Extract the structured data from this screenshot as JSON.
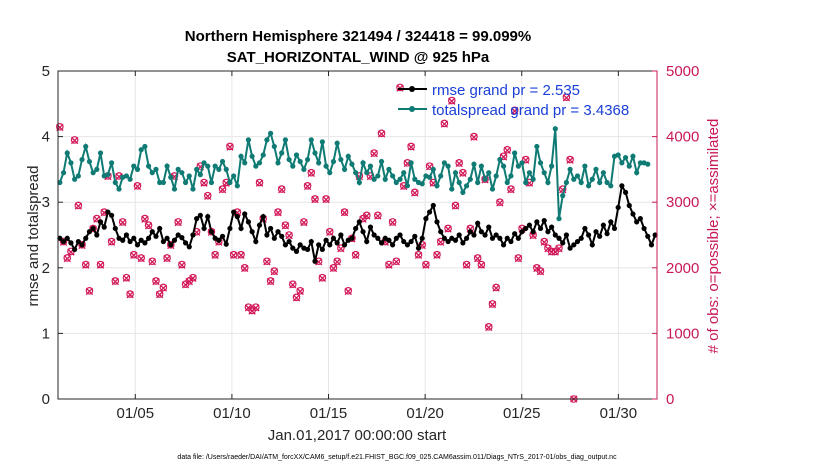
{
  "chart_data": {
    "type": "line",
    "title_line1": "Northern Hemisphere 321494 / 324418 = 99.099%",
    "title_line2": "SAT_HORIZONTAL_WIND @ 925 hPa",
    "xlabel": "Jan.01,2017 00:00:00 start",
    "ylabel_left": "rmse and totalspread",
    "ylabel_right": "# of obs: o=possible; ×=assimilated",
    "footnote": "data file: /Users/raeder/DAI/ATM_forcXX/CAM6_setup/f.e21.FHIST_BGC.f09_025.CAM6assim.011/Diags_NTrS_2017-01/obs_diag_output.nc",
    "x_range_days": [
      1,
      32
    ],
    "x_ticks": [
      5,
      10,
      15,
      20,
      25,
      30
    ],
    "x_tick_labels": [
      "01/05",
      "01/10",
      "01/15",
      "01/20",
      "01/25",
      "01/30"
    ],
    "ylim_left": [
      0,
      5
    ],
    "y_ticks_left": [
      "0",
      "1",
      "2",
      "3",
      "4",
      "5"
    ],
    "ylim_right": [
      0,
      5000
    ],
    "y_ticks_right": [
      "0",
      "1000",
      "2000",
      "3000",
      "4000",
      "5000"
    ],
    "grid": true,
    "legend_position": "top-right",
    "series": [
      {
        "name": "rmse grand pr = 2.535",
        "color": "#000000",
        "axis": "left",
        "values": [
          2.45,
          2.4,
          2.45,
          2.38,
          2.28,
          2.4,
          2.35,
          2.45,
          2.55,
          2.6,
          2.5,
          2.7,
          2.62,
          2.85,
          2.8,
          2.6,
          2.45,
          2.42,
          2.5,
          2.4,
          2.45,
          2.35,
          2.42,
          2.38,
          2.45,
          2.55,
          2.48,
          2.6,
          2.4,
          2.45,
          2.35,
          2.42,
          2.5,
          2.46,
          2.38,
          2.32,
          2.5,
          2.75,
          2.8,
          2.6,
          2.78,
          2.55,
          2.45,
          2.42,
          2.48,
          2.36,
          2.6,
          2.85,
          2.78,
          2.6,
          2.82,
          2.7,
          2.55,
          2.4,
          2.65,
          2.78,
          2.5,
          2.6,
          2.45,
          2.55,
          2.48,
          2.35,
          2.4,
          2.3,
          2.25,
          2.35,
          2.3,
          2.28,
          2.4,
          2.1,
          2.35,
          2.28,
          2.42,
          2.35,
          2.45,
          2.38,
          2.5,
          2.35,
          2.42,
          2.45,
          2.6,
          2.7,
          2.55,
          2.4,
          2.62,
          2.5,
          2.45,
          2.38,
          2.45,
          2.42,
          2.35,
          2.45,
          2.5,
          2.4,
          2.35,
          2.4,
          2.48,
          2.3,
          2.45,
          2.75,
          2.85,
          2.95,
          2.7,
          2.55,
          2.45,
          2.4,
          2.45,
          2.42,
          2.5,
          2.38,
          2.45,
          2.55,
          2.5,
          2.68,
          2.55,
          2.5,
          2.62,
          2.45,
          2.5,
          2.45,
          2.35,
          2.45,
          2.4,
          2.52,
          2.45,
          2.55,
          2.6,
          2.65,
          2.55,
          2.7,
          2.6,
          2.72,
          2.55,
          2.62,
          2.5,
          2.45,
          2.38,
          2.5,
          2.3,
          2.35,
          2.4,
          2.45,
          2.6,
          2.5,
          2.35,
          2.55,
          2.48,
          2.65,
          2.52,
          2.7,
          2.6,
          2.92,
          3.25,
          3.15,
          2.95,
          2.82,
          2.7,
          2.75,
          2.6,
          2.48,
          2.35,
          2.5
        ]
      },
      {
        "name": "totalspread grand pr = 3.4368",
        "color": "#0f7b74",
        "axis": "left",
        "values": [
          3.3,
          3.45,
          3.75,
          3.6,
          3.35,
          3.4,
          3.65,
          3.85,
          3.62,
          3.45,
          3.5,
          3.75,
          3.4,
          3.42,
          3.6,
          3.3,
          3.2,
          3.38,
          3.4,
          3.35,
          3.55,
          3.5,
          3.8,
          3.85,
          3.55,
          3.45,
          3.5,
          3.3,
          3.3,
          3.55,
          3.38,
          3.2,
          3.5,
          3.45,
          3.3,
          3.4,
          3.2,
          3.5,
          3.42,
          3.6,
          3.55,
          3.3,
          3.55,
          3.5,
          3.62,
          3.5,
          3.3,
          3.4,
          3.25,
          3.7,
          3.6,
          3.95,
          3.7,
          3.55,
          3.6,
          3.72,
          3.95,
          4.05,
          3.85,
          3.6,
          3.75,
          3.95,
          3.65,
          3.55,
          3.72,
          3.62,
          3.5,
          3.65,
          3.95,
          3.75,
          3.6,
          3.92,
          3.55,
          3.45,
          3.62,
          3.9,
          3.65,
          3.5,
          3.7,
          3.58,
          3.45,
          3.3,
          3.6,
          3.45,
          3.55,
          3.35,
          3.4,
          3.62,
          3.35,
          3.5,
          3.4,
          3.3,
          3.35,
          3.45,
          3.25,
          3.6,
          3.35,
          3.3,
          3.28,
          3.4,
          3.38,
          3.5,
          3.25,
          3.4,
          3.6,
          3.55,
          3.2,
          3.45,
          3.3,
          3.15,
          3.25,
          3.35,
          3.58,
          3.3,
          3.55,
          3.35,
          3.45,
          3.2,
          3.4,
          3.65,
          3.55,
          3.3,
          3.4,
          3.75,
          3.55,
          3.6,
          3.3,
          3.45,
          3.35,
          3.85,
          3.6,
          3.45,
          3.3,
          3.55,
          4.12,
          2.75,
          3.1,
          3.3,
          3.5,
          3.35,
          3.4,
          3.3,
          3.55,
          3.25,
          3.35,
          3.5,
          3.3,
          3.45,
          3.3,
          3.25,
          3.7,
          3.72,
          3.6,
          3.68,
          3.55,
          3.7,
          3.45,
          3.6,
          3.6,
          3.58
        ]
      },
      {
        "name": "obs possible",
        "color": "#d2195a",
        "axis": "right",
        "marker": "o",
        "values": [
          4150,
          2400,
          2150,
          2250,
          3950,
          2950,
          2350,
          2050,
          1650,
          2600,
          2750,
          2050,
          2850,
          3400,
          2400,
          1800,
          3400,
          2700,
          1850,
          1600,
          2200,
          3250,
          2150,
          2750,
          2650,
          2100,
          1800,
          1600,
          1700,
          2150,
          2350,
          3400,
          2700,
          2050,
          1750,
          1800,
          1850,
          2550,
          3550,
          3300,
          3100,
          2550,
          2200,
          2400,
          3200,
          3300,
          3850,
          2200,
          2850,
          2200,
          2000,
          1400,
          1350,
          1400,
          3300,
          2750,
          2100,
          1800,
          1950,
          2850,
          3200,
          2650,
          2500,
          1750,
          1550,
          1650,
          2700,
          3250,
          3450,
          3050,
          2100,
          1850,
          3050,
          2550,
          2000,
          2100,
          2300,
          2850,
          1650,
          2450,
          2200,
          3400,
          2750,
          2800,
          3400,
          3750,
          2800,
          4050,
          2400,
          2050,
          2700,
          2100,
          4750,
          3250,
          3600,
          3850,
          3150,
          2200,
          2350,
          2050,
          3550,
          3300,
          2200,
          2400,
          4200,
          2600,
          4550,
          2950,
          3600,
          3450,
          2050,
          2600,
          4000,
          2150,
          2050,
          3350,
          1100,
          1450,
          1700,
          3000,
          3700,
          3800,
          3200,
          4400,
          2150,
          2600,
          3650,
          3300,
          2500,
          2000,
          1950,
          2400,
          2300,
          2250,
          2250,
          2300,
          3200,
          4600,
          3650,
          0
        ]
      },
      {
        "name": "obs assimilated",
        "color": "#d2195a",
        "axis": "right",
        "marker": "x",
        "values": [
          4140,
          2390,
          2140,
          2240,
          3940,
          2940,
          2340,
          2040,
          1640,
          2590,
          2740,
          2040,
          2840,
          3390,
          2390,
          1790,
          3390,
          2690,
          1840,
          1590,
          2190,
          3240,
          2140,
          2740,
          2640,
          2090,
          1790,
          1590,
          1690,
          2140,
          2340,
          3390,
          2690,
          2040,
          1740,
          1790,
          1840,
          2540,
          3540,
          3290,
          3090,
          2540,
          2190,
          2390,
          3190,
          3290,
          3840,
          2190,
          2840,
          2190,
          1990,
          1390,
          1340,
          1390,
          3290,
          2740,
          2090,
          1790,
          1940,
          2840,
          3190,
          2640,
          2490,
          1740,
          1540,
          1640,
          2690,
          3240,
          3440,
          3040,
          2090,
          1840,
          3040,
          2540,
          1990,
          2090,
          2290,
          2840,
          1640,
          2440,
          2190,
          3390,
          2740,
          2790,
          3390,
          3740,
          2790,
          4040,
          2390,
          2040,
          2690,
          2090,
          4740,
          3240,
          3590,
          3840,
          3140,
          2190,
          2340,
          2040,
          3540,
          3290,
          2190,
          2390,
          4190,
          2590,
          4540,
          2940,
          3590,
          3440,
          2040,
          2590,
          3990,
          2140,
          2040,
          3340,
          1090,
          1440,
          1690,
          2990,
          3690,
          3790,
          3190,
          4390,
          2140,
          2590,
          3640,
          3290,
          2490,
          1990,
          1940,
          2390,
          2290,
          2240,
          2240,
          2290,
          3190,
          4590,
          3640,
          0
        ]
      }
    ]
  }
}
